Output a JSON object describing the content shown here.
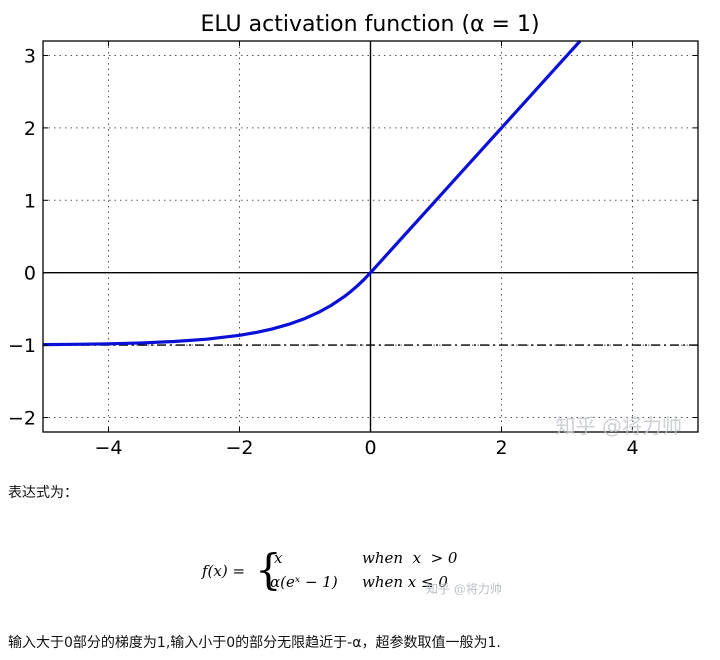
{
  "chart_data": {
    "type": "line",
    "title": "ELU activation function (α = 1)",
    "xlim": [
      -5,
      5
    ],
    "ylim": [
      -2.2,
      3.2
    ],
    "x_ticks": [
      -4,
      -2,
      0,
      2,
      4
    ],
    "y_ticks": [
      -2,
      -1,
      0,
      1,
      2,
      3
    ],
    "x_tick_labels": [
      "−4",
      "−2",
      "0",
      "2",
      "4"
    ],
    "y_tick_labels": [
      "−2",
      "−1",
      "0",
      "1",
      "2",
      "3"
    ],
    "grid": true,
    "grid_style": "dotted",
    "series": [
      {
        "color": "#0a10d6",
        "style": "solid",
        "x": [
          -5,
          -4.5,
          -4,
          -3.5,
          -3,
          -2.5,
          -2,
          -1.75,
          -1.5,
          -1.25,
          -1,
          -0.8,
          -0.6,
          -0.4,
          -0.3,
          -0.2,
          -0.1,
          0,
          0.5,
          1,
          1.5,
          2,
          2.5,
          3,
          3.2
        ],
        "y": [
          -0.993,
          -0.989,
          -0.982,
          -0.97,
          -0.95,
          -0.918,
          -0.865,
          -0.826,
          -0.777,
          -0.713,
          -0.632,
          -0.551,
          -0.451,
          -0.33,
          -0.259,
          -0.181,
          -0.095,
          0,
          0.5,
          1,
          1.5,
          2,
          2.5,
          3,
          3.2
        ]
      }
    ],
    "reference_lines": [
      {
        "axis": "y",
        "value": -1,
        "style": "dash-dot",
        "color": "#000000"
      },
      {
        "axis": "y",
        "value": 0,
        "style": "solid",
        "color": "#000000"
      },
      {
        "axis": "x",
        "value": 0,
        "style": "solid",
        "color": "#000000"
      }
    ]
  },
  "watermark": {
    "chart": "知乎 @将力帅",
    "formula": "知乎 @将力帅"
  },
  "text": {
    "intro": "表达式为：",
    "conclusion": "输入大于0部分的梯度为1,输入小于0的部分无限趋近于-α，超参数取值一般为1."
  },
  "formula": {
    "lhs": "f(x) =",
    "case1_expr": "x",
    "case1_cond": "when  x  > 0",
    "case2_expr": "α(eˣ − 1)",
    "case2_cond": "when x ≤ 0"
  }
}
